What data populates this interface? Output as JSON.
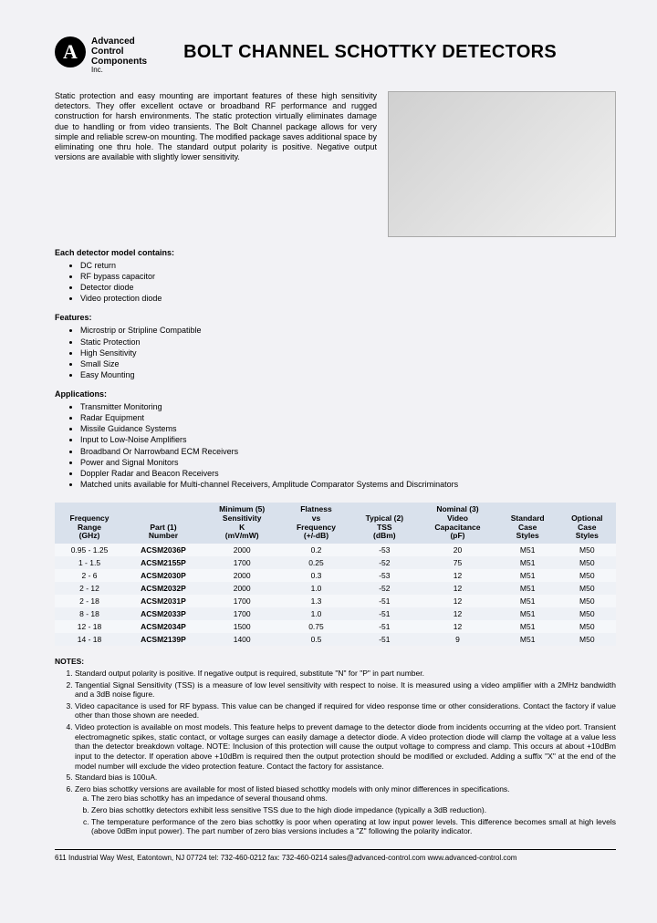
{
  "logo": {
    "letter": "A",
    "line1": "Advanced",
    "line2": "Control",
    "line3": "Components",
    "inc": "Inc."
  },
  "title": "BOLT CHANNEL SCHOTTKY DETECTORS",
  "intro": "Static protection and easy mounting are important features of these high sensitivity detectors. They offer excellent octave or broadband RF performance and rugged construction for harsh environments. The static protection virtually eliminates damage due to handling or from video transients. The Bolt Channel package allows for very simple and reliable screw-on mounting. The modified package saves additional space by eliminating one thru hole. The standard output polarity is positive. Negative output versions are available with slightly lower sensitivity.",
  "sections": {
    "contains_head": "Each detector model contains:",
    "contains": [
      "DC return",
      "RF bypass capacitor",
      "Detector diode",
      "Video protection diode"
    ],
    "features_head": "Features:",
    "features": [
      "Microstrip or Stripline Compatible",
      "Static Protection",
      "High Sensitivity",
      "Small Size",
      "Easy Mounting"
    ],
    "apps_head": "Applications:",
    "apps": [
      "Transmitter Monitoring",
      "Radar Equipment",
      "Missile Guidance Systems",
      "Input to Low-Noise Amplifiers",
      "Broadband Or Narrowband ECM Receivers",
      "Power and Signal Monitors",
      "Doppler Radar and Beacon Receivers",
      "Matched units available for Multi-channel Receivers, Amplitude Comparator Systems and Discriminators"
    ]
  },
  "table": {
    "columns": [
      "Frequency\nRange\n(GHz)",
      "Part (1)\nNumber",
      "Minimum (5)\nSensitivity\nK\n(mV/mW)",
      "Flatness\nvs\nFrequency\n(+/-dB)",
      "Typical (2)\nTSS\n(dBm)",
      "Nominal (3)\nVideo\nCapacitance\n(pF)",
      "Standard\nCase\nStyles",
      "Optional\nCase\nStyles"
    ],
    "rows": [
      [
        "0.95 - 1.25",
        "ACSM2036P",
        "2000",
        "0.2",
        "-53",
        "20",
        "M51",
        "M50"
      ],
      [
        "1 - 1.5",
        "ACSM2155P",
        "1700",
        "0.25",
        "-52",
        "75",
        "M51",
        "M50"
      ],
      [
        "2 - 6",
        "ACSM2030P",
        "2000",
        "0.3",
        "-53",
        "12",
        "M51",
        "M50"
      ],
      [
        "2 - 12",
        "ACSM2032P",
        "2000",
        "1.0",
        "-52",
        "12",
        "M51",
        "M50"
      ],
      [
        "2 - 18",
        "ACSM2031P",
        "1700",
        "1.3",
        "-51",
        "12",
        "M51",
        "M50"
      ],
      [
        "8 - 18",
        "ACSM2033P",
        "1700",
        "1.0",
        "-51",
        "12",
        "M51",
        "M50"
      ],
      [
        "12 - 18",
        "ACSM2034P",
        "1500",
        "0.75",
        "-51",
        "12",
        "M51",
        "M50"
      ],
      [
        "14 - 18",
        "ACSM2139P",
        "1400",
        "0.5",
        "-51",
        "9",
        "M51",
        "M50"
      ]
    ]
  },
  "notes_head": "NOTES:",
  "notes": [
    "Standard output polarity is positive. If negative output is required, substitute \"N\" for \"P\" in part number.",
    "Tangential Signal Sensitivity (TSS) is a measure of low level sensitivity with respect to noise. It is measured using a video amplifier with a 2MHz bandwidth and a 3dB noise figure.",
    "Video capacitance is used for RF bypass. This value can be changed if required for video response time or other considerations. Contact the factory if value other than those shown are needed.",
    "Video protection is available on most models. This feature helps to prevent damage to the detector diode from incidents occurring at the video port. Transient electromagnetic spikes, static contact, or voltage surges can easily damage a detector diode. A video protection diode will clamp the voltage at a value less than the detector breakdown voltage. NOTE: Inclusion of this protection will cause the output voltage to compress and clamp. This occurs at about +10dBm input to the detector. If operation above +10dBm is required then the output protection should be modified or excluded. Adding a suffix \"X\" at the end of the model number will exclude the video protection feature. Contact the factory for assistance.",
    "Standard bias is 100uA.",
    "Zero bias schottky versions are available for most of listed biased schottky models with only minor differences in specifications."
  ],
  "subnotes": [
    "The zero bias schottky has an impedance of several thousand ohms.",
    "Zero bias schottky detectors exhibit less sensitive TSS due to the high diode impedance (typically a 3dB reduction).",
    "The temperature performance of the zero bias schottky is poor when operating at low input power levels. This difference becomes small at high levels (above 0dBm input power). The part number of zero bias versions includes a \"Z\" following the polarity indicator."
  ],
  "footer": "611 Industrial Way West, Eatontown, NJ   07724    tel: 732-460-0212   fax: 732-460-0214    sales@advanced-control.com    www.advanced-control.com"
}
